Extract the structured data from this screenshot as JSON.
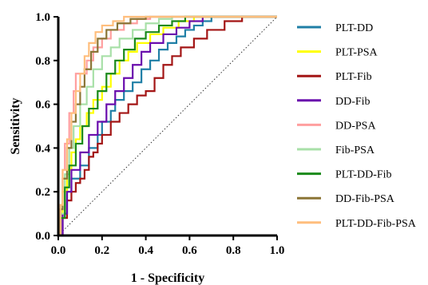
{
  "chart_data": {
    "type": "line",
    "xlabel": "1 - Specificity",
    "ylabel": "Sensitivity",
    "xlim": [
      0.0,
      1.0
    ],
    "ylim": [
      0.0,
      1.0
    ],
    "x_ticks": [
      "0.0",
      "0.2",
      "0.4",
      "0.6",
      "0.8",
      "1.0"
    ],
    "y_ticks": [
      "0.0",
      "0.2",
      "0.4",
      "0.6",
      "0.8",
      "1.0"
    ],
    "grid": false,
    "legend_position": "right",
    "reference_line": {
      "style": "dotted",
      "from": [
        0,
        0
      ],
      "to": [
        1,
        1
      ]
    },
    "series": [
      {
        "name": "PLT-DD",
        "color": "#1f7fa6",
        "points": [
          [
            0,
            0
          ],
          [
            0.02,
            0.1
          ],
          [
            0.04,
            0.2
          ],
          [
            0.06,
            0.26
          ],
          [
            0.1,
            0.32
          ],
          [
            0.14,
            0.4
          ],
          [
            0.18,
            0.46
          ],
          [
            0.2,
            0.52
          ],
          [
            0.24,
            0.57
          ],
          [
            0.26,
            0.62
          ],
          [
            0.3,
            0.66
          ],
          [
            0.34,
            0.7
          ],
          [
            0.38,
            0.76
          ],
          [
            0.42,
            0.8
          ],
          [
            0.46,
            0.85
          ],
          [
            0.5,
            0.88
          ],
          [
            0.54,
            0.91
          ],
          [
            0.58,
            0.94
          ],
          [
            0.62,
            0.96
          ],
          [
            0.66,
            0.98
          ],
          [
            0.7,
            1.0
          ],
          [
            1.0,
            1.0
          ]
        ]
      },
      {
        "name": "PLT-PSA",
        "color": "#ffff00",
        "points": [
          [
            0,
            0
          ],
          [
            0.01,
            0.08
          ],
          [
            0.02,
            0.2
          ],
          [
            0.04,
            0.3
          ],
          [
            0.06,
            0.38
          ],
          [
            0.08,
            0.44
          ],
          [
            0.1,
            0.5
          ],
          [
            0.13,
            0.56
          ],
          [
            0.16,
            0.62
          ],
          [
            0.2,
            0.68
          ],
          [
            0.24,
            0.74
          ],
          [
            0.28,
            0.8
          ],
          [
            0.32,
            0.84
          ],
          [
            0.36,
            0.88
          ],
          [
            0.42,
            0.92
          ],
          [
            0.48,
            0.95
          ],
          [
            0.55,
            0.98
          ],
          [
            0.62,
            1.0
          ],
          [
            1.0,
            1.0
          ]
        ]
      },
      {
        "name": "PLT-Fib",
        "color": "#a31515",
        "points": [
          [
            0,
            0
          ],
          [
            0.02,
            0.08
          ],
          [
            0.04,
            0.16
          ],
          [
            0.06,
            0.2
          ],
          [
            0.08,
            0.24
          ],
          [
            0.1,
            0.26
          ],
          [
            0.12,
            0.3
          ],
          [
            0.14,
            0.36
          ],
          [
            0.16,
            0.38
          ],
          [
            0.18,
            0.42
          ],
          [
            0.2,
            0.46
          ],
          [
            0.24,
            0.52
          ],
          [
            0.28,
            0.56
          ],
          [
            0.32,
            0.6
          ],
          [
            0.36,
            0.64
          ],
          [
            0.4,
            0.66
          ],
          [
            0.44,
            0.72
          ],
          [
            0.48,
            0.78
          ],
          [
            0.52,
            0.82
          ],
          [
            0.56,
            0.86
          ],
          [
            0.62,
            0.9
          ],
          [
            0.68,
            0.94
          ],
          [
            0.76,
            0.98
          ],
          [
            0.84,
            1.0
          ],
          [
            1.0,
            1.0
          ]
        ]
      },
      {
        "name": "DD-Fib",
        "color": "#6a0dad",
        "points": [
          [
            0,
            0
          ],
          [
            0.02,
            0.1
          ],
          [
            0.04,
            0.2
          ],
          [
            0.06,
            0.3
          ],
          [
            0.1,
            0.38
          ],
          [
            0.14,
            0.46
          ],
          [
            0.18,
            0.52
          ],
          [
            0.22,
            0.6
          ],
          [
            0.26,
            0.66
          ],
          [
            0.3,
            0.72
          ],
          [
            0.34,
            0.78
          ],
          [
            0.38,
            0.84
          ],
          [
            0.42,
            0.88
          ],
          [
            0.48,
            0.92
          ],
          [
            0.54,
            0.95
          ],
          [
            0.6,
            0.98
          ],
          [
            0.66,
            1.0
          ],
          [
            1.0,
            1.0
          ]
        ]
      },
      {
        "name": "DD-PSA",
        "color": "#ff9f9f",
        "points": [
          [
            0,
            0
          ],
          [
            0.01,
            0.12
          ],
          [
            0.02,
            0.3
          ],
          [
            0.03,
            0.42
          ],
          [
            0.05,
            0.56
          ],
          [
            0.07,
            0.66
          ],
          [
            0.08,
            0.74
          ],
          [
            0.12,
            0.74
          ],
          [
            0.13,
            0.8
          ],
          [
            0.16,
            0.86
          ],
          [
            0.2,
            0.9
          ],
          [
            0.24,
            0.94
          ],
          [
            0.3,
            0.97
          ],
          [
            0.36,
            0.99
          ],
          [
            0.42,
            1.0
          ],
          [
            1.0,
            1.0
          ]
        ]
      },
      {
        "name": "Fib-PSA",
        "color": "#a8e0a8",
        "points": [
          [
            0,
            0
          ],
          [
            0.01,
            0.1
          ],
          [
            0.03,
            0.28
          ],
          [
            0.05,
            0.4
          ],
          [
            0.07,
            0.5
          ],
          [
            0.1,
            0.6
          ],
          [
            0.13,
            0.68
          ],
          [
            0.16,
            0.76
          ],
          [
            0.2,
            0.82
          ],
          [
            0.24,
            0.86
          ],
          [
            0.28,
            0.9
          ],
          [
            0.34,
            0.94
          ],
          [
            0.4,
            0.97
          ],
          [
            0.46,
            0.99
          ],
          [
            0.52,
            1.0
          ],
          [
            1.0,
            1.0
          ]
        ]
      },
      {
        "name": "PLT-DD-Fib",
        "color": "#1a8a1a",
        "points": [
          [
            0,
            0
          ],
          [
            0.01,
            0.08
          ],
          [
            0.03,
            0.22
          ],
          [
            0.05,
            0.32
          ],
          [
            0.08,
            0.42
          ],
          [
            0.11,
            0.5
          ],
          [
            0.14,
            0.58
          ],
          [
            0.18,
            0.66
          ],
          [
            0.22,
            0.74
          ],
          [
            0.26,
            0.8
          ],
          [
            0.3,
            0.85
          ],
          [
            0.35,
            0.9
          ],
          [
            0.4,
            0.93
          ],
          [
            0.46,
            0.96
          ],
          [
            0.52,
            0.98
          ],
          [
            0.58,
            1.0
          ],
          [
            1.0,
            1.0
          ]
        ]
      },
      {
        "name": "DD-Fib-PSA",
        "color": "#8b7536",
        "points": [
          [
            0,
            0
          ],
          [
            0.01,
            0.12
          ],
          [
            0.02,
            0.26
          ],
          [
            0.04,
            0.4
          ],
          [
            0.06,
            0.52
          ],
          [
            0.08,
            0.6
          ],
          [
            0.1,
            0.68
          ],
          [
            0.12,
            0.76
          ],
          [
            0.15,
            0.84
          ],
          [
            0.18,
            0.9
          ],
          [
            0.22,
            0.94
          ],
          [
            0.27,
            0.97
          ],
          [
            0.33,
            0.99
          ],
          [
            0.4,
            1.0
          ],
          [
            1.0,
            1.0
          ]
        ]
      },
      {
        "name": "PLT-DD-Fib-PSA",
        "color": "#ffbe7d",
        "points": [
          [
            0,
            0
          ],
          [
            0.01,
            0.14
          ],
          [
            0.02,
            0.3
          ],
          [
            0.04,
            0.44
          ],
          [
            0.06,
            0.56
          ],
          [
            0.08,
            0.66
          ],
          [
            0.1,
            0.74
          ],
          [
            0.12,
            0.82
          ],
          [
            0.14,
            0.88
          ],
          [
            0.17,
            0.93
          ],
          [
            0.2,
            0.96
          ],
          [
            0.25,
            0.98
          ],
          [
            0.3,
            1.0
          ],
          [
            1.0,
            1.0
          ]
        ]
      }
    ]
  }
}
